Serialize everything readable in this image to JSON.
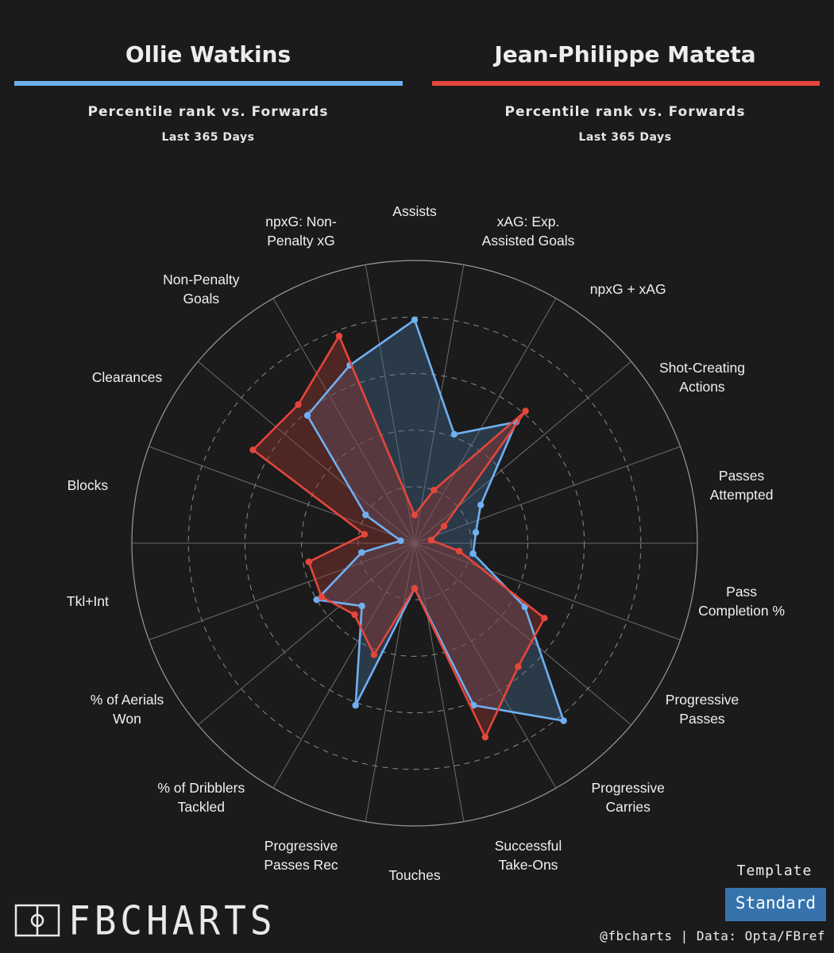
{
  "colors": {
    "background": "#1b1b1b",
    "player1": "#6fb0f2",
    "player2": "#e5463b",
    "grid": "#8a8a8a",
    "badge": "#3673ad"
  },
  "players": [
    {
      "name": "Ollie Watkins",
      "subtitle": "Percentile rank vs. Forwards",
      "period": "Last 365 Days"
    },
    {
      "name": "Jean-Philippe Mateta",
      "subtitle": "Percentile rank vs. Forwards",
      "period": "Last 365 Days"
    }
  ],
  "chart_data": {
    "type": "radar",
    "rmax": 100,
    "gridlines": [
      20,
      40,
      60,
      80
    ],
    "categories": [
      "Passes Attempted",
      "Pass Completion %",
      "Progressive Passes",
      "Progressive Carries",
      "Successful Take-Ons",
      "Touches",
      "Progressive Passes Rec",
      "% of Dribblers Tackled",
      "% of Aerials Won",
      "Tkl+Int",
      "Blocks",
      "Clearances",
      "Non-Penalty Goals",
      "npxG: Non-Penalty xG",
      "Assists",
      "xAG: Exp. Assisted Goals",
      "npxG + xAG",
      "Shot-Creating Actions"
    ],
    "labels": [
      [
        "Passes",
        "Attempted"
      ],
      [
        "Pass",
        "Completion %"
      ],
      [
        "Progressive",
        "Passes"
      ],
      [
        "Progressive",
        "Carries"
      ],
      [
        "Successful",
        "Take-Ons"
      ],
      [
        "Touches"
      ],
      [
        "Progressive",
        "Passes Rec"
      ],
      [
        "% of Dribblers",
        "Tackled"
      ],
      [
        "% of Aerials",
        "Won"
      ],
      [
        "Tkl+Int"
      ],
      [
        "Blocks"
      ],
      [
        "Clearances"
      ],
      [
        "Non-Penalty",
        "Goals"
      ],
      [
        "npxG: Non-",
        "Penalty xG"
      ],
      [
        "Assists"
      ],
      [
        "xAG: Exp.",
        "Assisted Goals"
      ],
      [
        "npxG + xAG"
      ],
      [
        "Shot-Creating",
        "Actions"
      ]
    ],
    "series": [
      {
        "name": "Ollie Watkins",
        "values": [
          22,
          21,
          45,
          82,
          61,
          16,
          61,
          29,
          40,
          19,
          5,
          20,
          59,
          67,
          79,
          41,
          56,
          27
        ]
      },
      {
        "name": "Jean-Philippe Mateta",
        "values": [
          6,
          16,
          53,
          57,
          73,
          16,
          42,
          33,
          38,
          38,
          18,
          66,
          64,
          78,
          10,
          20,
          61,
          12
        ]
      }
    ]
  },
  "template": {
    "title": "Template",
    "value": "Standard"
  },
  "credit": "@fbcharts | Data: Opta/FBref",
  "logo": {
    "text": "FBCHARTS"
  }
}
